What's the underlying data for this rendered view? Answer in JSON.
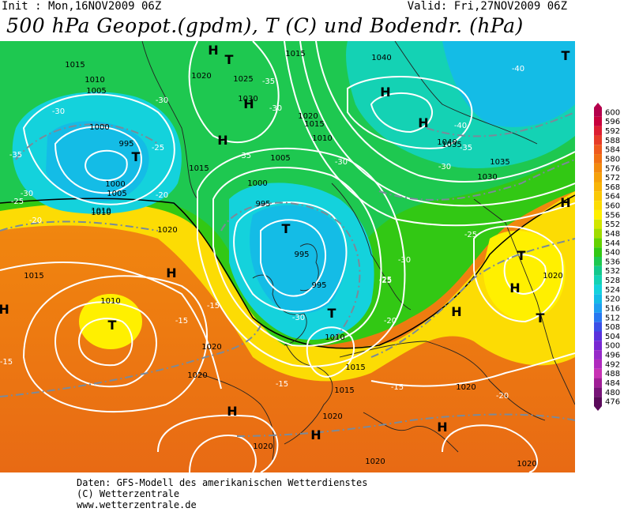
{
  "header": {
    "init": "Init : Mon,16NOV2009 06Z",
    "valid": "Valid: Fri,27NOV2009 06Z",
    "title": "500 hPa Geopot.(gpdm), T (C) und Bodendr. (hPa)"
  },
  "map": {
    "pressure_labels": [
      "1015",
      "1010",
      "1005",
      "1000",
      "995",
      "1020",
      "1025",
      "1030",
      "1040",
      "1035",
      "1030",
      "1015",
      "1010",
      "1005",
      "1000",
      "995",
      "995",
      "1015",
      "1010",
      "1020",
      "1020",
      "1015",
      "1010",
      "1020",
      "1005",
      "1000",
      "1010",
      "1015",
      "1020",
      "1020",
      "1020",
      "1020",
      "1020",
      "1020",
      "1015",
      "1010",
      "1035",
      "1040",
      "1015",
      "1020",
      "995"
    ],
    "temp_labels": [
      "-35",
      "-30",
      "-30",
      "-25",
      "-20",
      "-25",
      "-35",
      "-35",
      "-30",
      "-30",
      "-30",
      "-30",
      "-25",
      "-40",
      "-40",
      "-35",
      "-30",
      "-25",
      "-20",
      "-20",
      "-15",
      "-15",
      "-15",
      "-15",
      "-15",
      "-20",
      "-30",
      "-25"
    ],
    "centers": [
      "H",
      "H",
      "H",
      "H",
      "H",
      "H",
      "H",
      "H",
      "H",
      "H",
      "H",
      "H",
      "H",
      "T",
      "T",
      "T",
      "T",
      "T",
      "T",
      "T",
      "T"
    ]
  },
  "legend": {
    "values": [
      "600",
      "596",
      "592",
      "588",
      "584",
      "580",
      "576",
      "572",
      "568",
      "564",
      "560",
      "556",
      "552",
      "548",
      "544",
      "540",
      "536",
      "532",
      "528",
      "524",
      "520",
      "516",
      "512",
      "508",
      "504",
      "500",
      "496",
      "492",
      "488",
      "484",
      "480",
      "476"
    ],
    "colors": [
      "#b4004c",
      "#c8003c",
      "#dc1e32",
      "#e63c28",
      "#ee5a1e",
      "#f07014",
      "#f28a0e",
      "#f5a00a",
      "#f8b408",
      "#fac806",
      "#fcdc04",
      "#fff000",
      "#d2e600",
      "#a0dc00",
      "#64d200",
      "#32c814",
      "#1ec850",
      "#14c88c",
      "#14d2b4",
      "#14d2dc",
      "#14bce6",
      "#1e9ef0",
      "#2878f0",
      "#3c50e6",
      "#5a32dc",
      "#7828d2",
      "#962ac8",
      "#b02abe",
      "#c832b4",
      "#a01e96",
      "#781478",
      "#5a0a5a"
    ]
  },
  "footer": {
    "line1": "Daten: GFS-Modell des amerikanischen Wetterdienstes",
    "line2": "(C) Wetterzentrale",
    "line3": "www.wetterzentrale.de"
  }
}
